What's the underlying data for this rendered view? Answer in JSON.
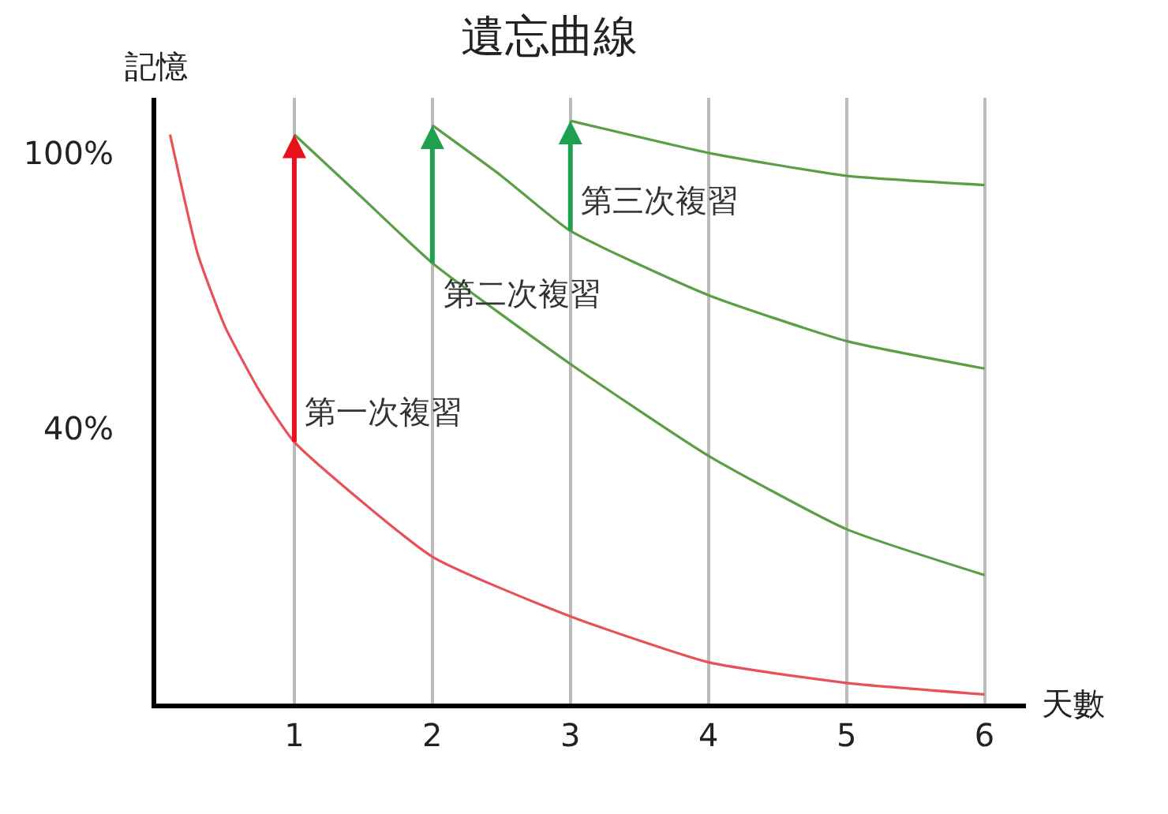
{
  "chart_data": {
    "type": "line",
    "title": "遺忘曲線",
    "xlabel": "天數",
    "ylabel": "記憶",
    "xlim": [
      0,
      6.3
    ],
    "xticks": [
      1,
      2,
      3,
      4,
      5,
      6
    ],
    "ylim": [
      -20,
      112
    ],
    "yticks": [
      {
        "value": 100,
        "label": "100%"
      },
      {
        "value": 40,
        "label": "40%"
      }
    ],
    "grid": "x",
    "line_style": "solid",
    "series": [
      {
        "color": "#e8505a",
        "x": [
          0.1,
          0.3,
          0.5,
          0.75,
          1,
          2,
          3,
          4,
          5,
          6
        ],
        "values": [
          104,
          78,
          62,
          48,
          37,
          12,
          -1,
          -11,
          -15.5,
          -18
        ]
      },
      {
        "color": "#5a9e46",
        "x": [
          1,
          1.5,
          2,
          3,
          4,
          5,
          6
        ],
        "values": [
          104,
          90,
          76,
          54,
          34,
          18,
          8
        ]
      },
      {
        "color": "#5a9e46",
        "x": [
          2,
          2.5,
          3,
          4,
          5,
          6
        ],
        "values": [
          106,
          95,
          83,
          69,
          59,
          53
        ]
      },
      {
        "color": "#5a9e46",
        "x": [
          3,
          4,
          5,
          6
        ],
        "values": [
          107,
          100,
          95,
          93
        ]
      }
    ],
    "annotations": [
      {
        "text": "第一次複習",
        "x": 1,
        "y": 104
      },
      {
        "text": "第二次複習",
        "x": 2,
        "y": 106
      },
      {
        "text": "第三次複習",
        "x": 3,
        "y": 107
      }
    ]
  }
}
